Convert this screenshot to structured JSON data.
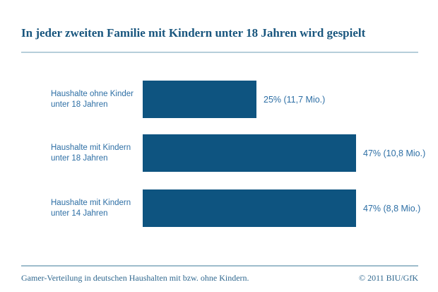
{
  "title": "In jeder zweiten Familie mit Kindern unter 18 Jahren wird gespielt",
  "chart_data": {
    "type": "bar",
    "orientation": "horizontal",
    "title": "In jeder zweiten Familie mit Kindern unter 18 Jahren wird gespielt",
    "categories": [
      "Haushalte ohne Kinder unter 18 Jahren",
      "Haushalte mit Kindern unter 18 Jahren",
      "Haushalte mit Kindern unter 14 Jahren"
    ],
    "categories_lines": [
      [
        "Haushalte ohne Kinder",
        "unter 18 Jahren"
      ],
      [
        "Haushalte mit Kindern",
        "unter 18 Jahren"
      ],
      [
        "Haushalte mit Kindern",
        "unter 14 Jahren"
      ]
    ],
    "values": [
      25,
      47,
      47
    ],
    "unit": "%",
    "absolute_values": [
      "11,7 Mio.",
      "10,8 Mio.",
      "8,8 Mio."
    ],
    "value_labels": [
      "25% (11,7 Mio.)",
      "47% (10,8 Mio.)",
      "47% (8,8 Mio.)"
    ],
    "xlim": [
      0,
      47
    ],
    "grid": false,
    "legend": false,
    "bar_color": "#0E5480"
  },
  "footer": {
    "caption": "Gamer-Verteilung in deutschen Haushalten mit bzw. ohne Kindern.",
    "copyright": "© 2011 BIU/GfK"
  },
  "colors": {
    "background": "#FFFFFF",
    "bar": "#0E5480",
    "title_text": "#19567E",
    "label_text": "#2E6FA5",
    "footer_text": "#30688F",
    "title_rule": "#B6CEDA",
    "footer_rule": "#9EBCCC"
  }
}
